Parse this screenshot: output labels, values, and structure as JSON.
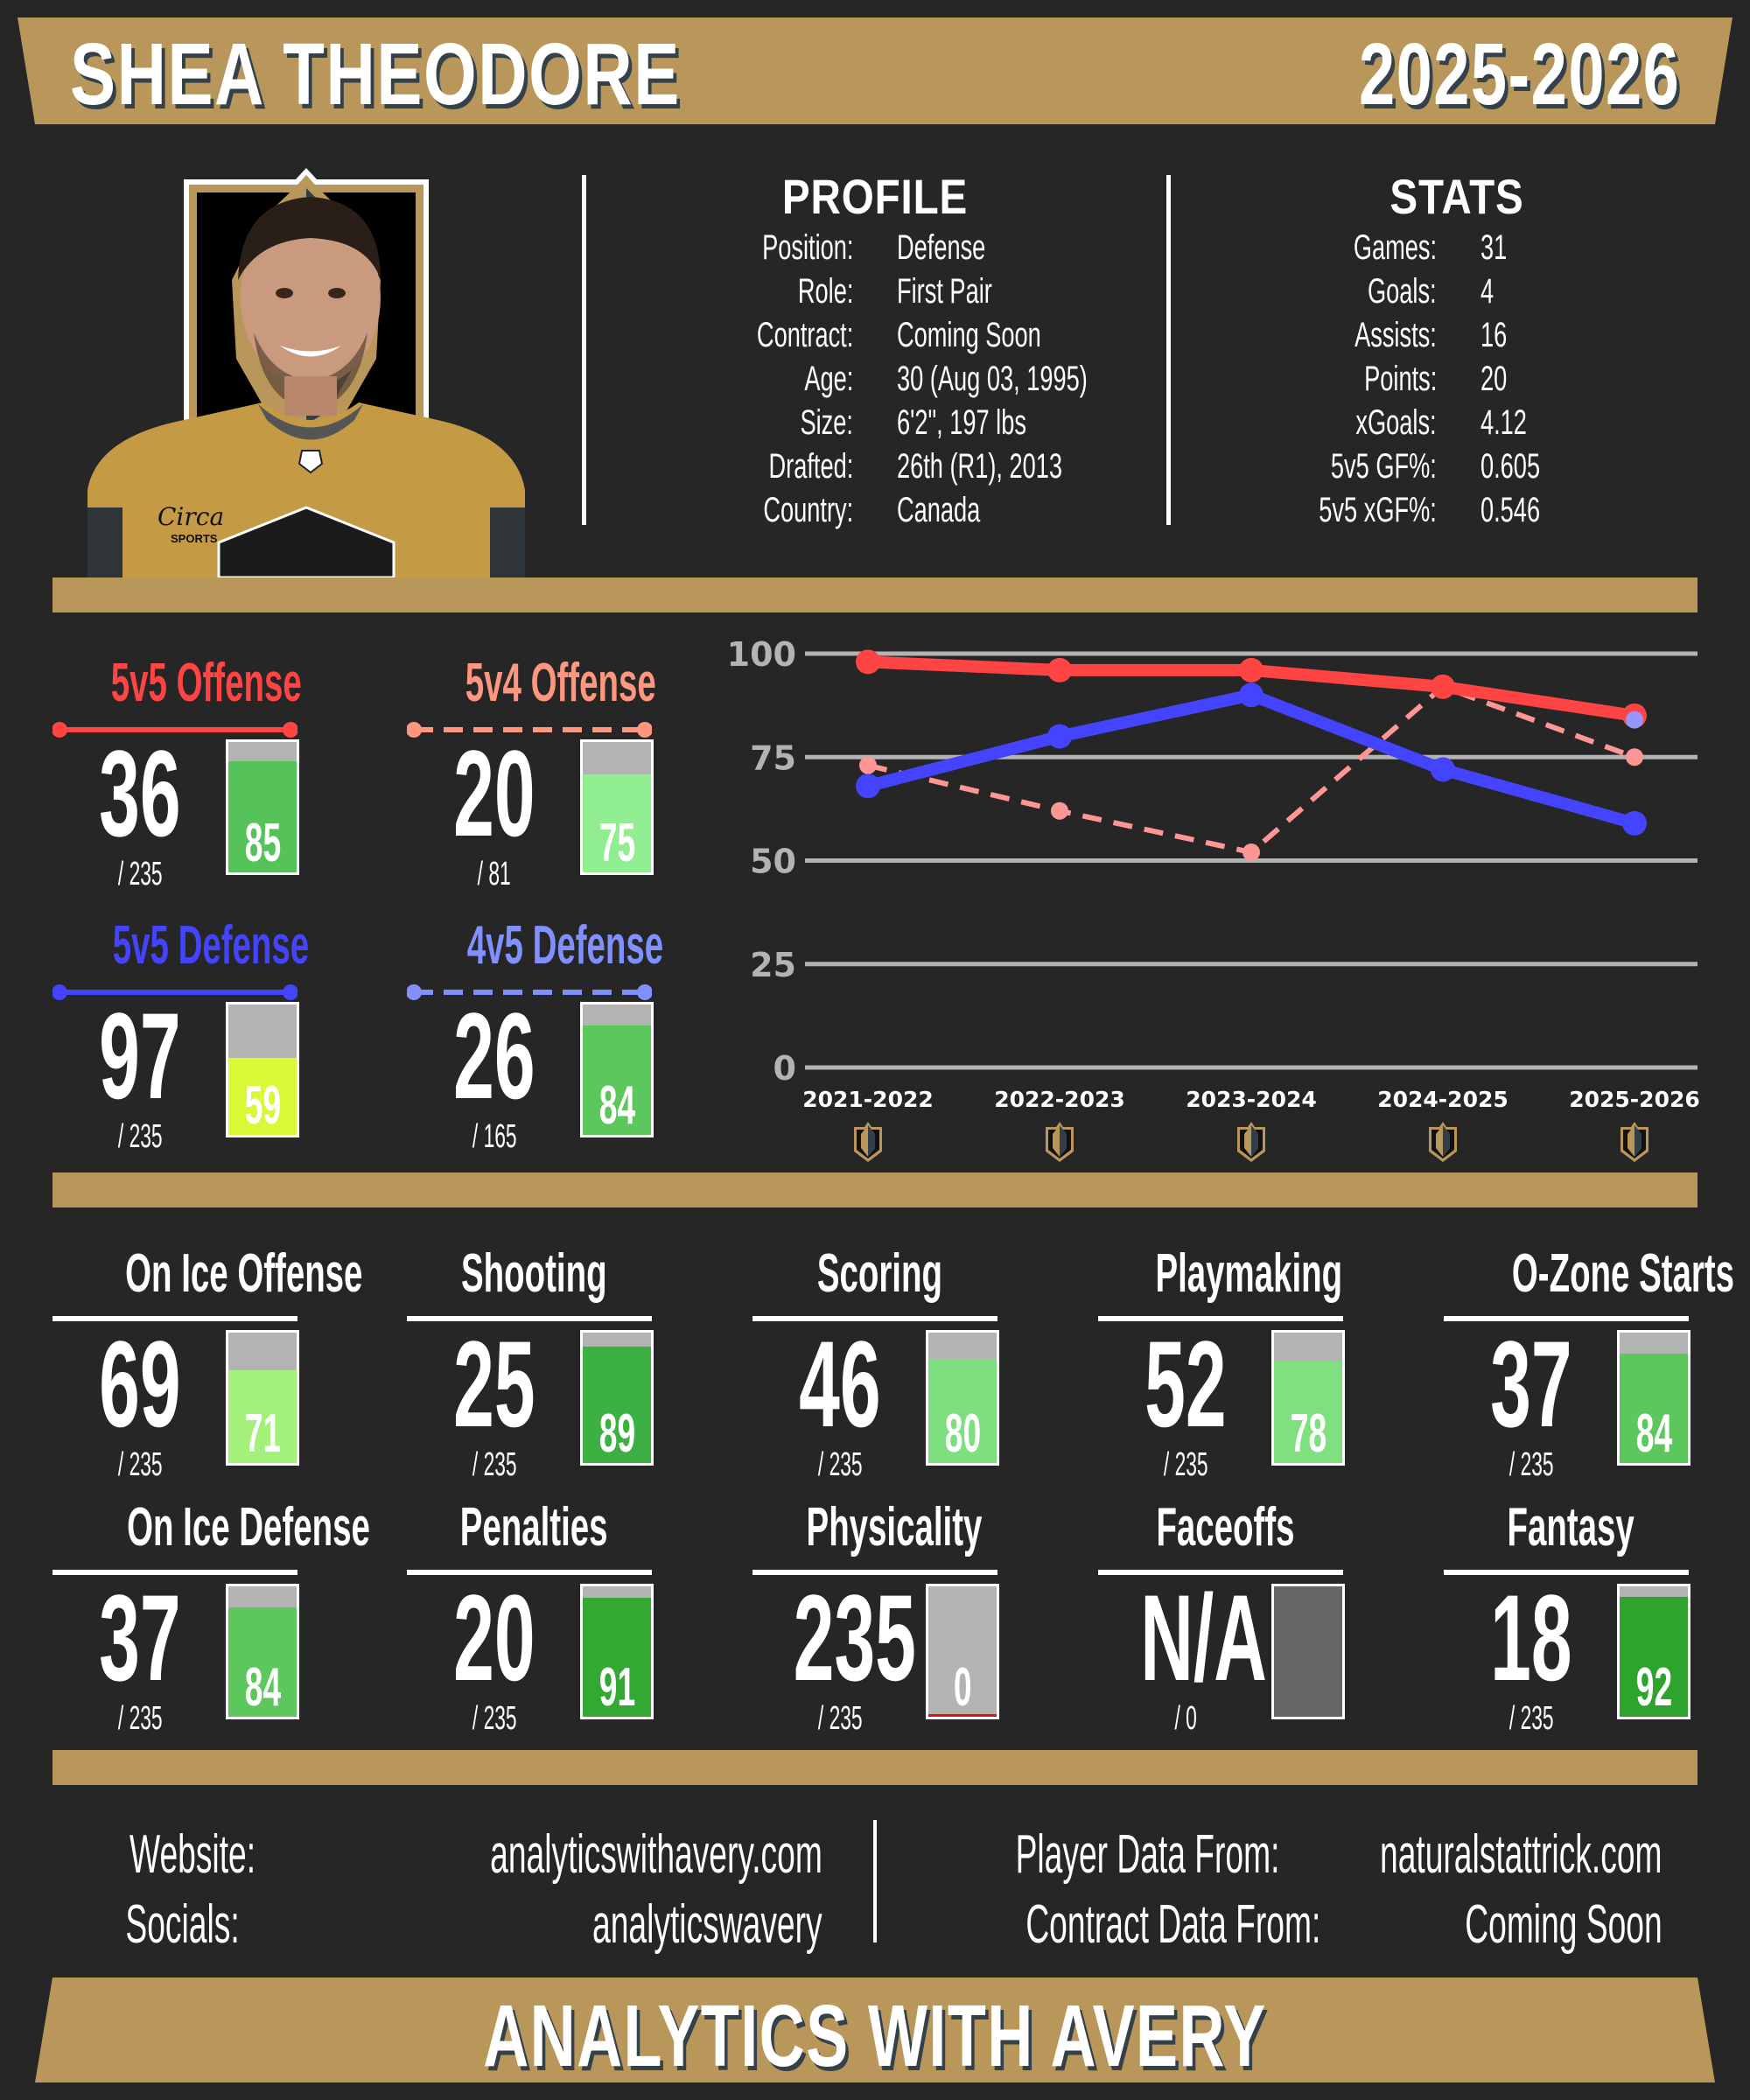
{
  "header": {
    "player_name": "SHEA THEODORE",
    "season": "2025-2026"
  },
  "colors": {
    "background": "#262626",
    "gold": "#b9975b",
    "text_shadow": "#34404a",
    "offense_5v5": "#ff4444",
    "offense_5v4": "#ff9696",
    "defense_5v5": "#4444ff",
    "defense_4v5": "#8c96ff",
    "bar_empty": "#b3b3b3",
    "grid": "#b3b3b3"
  },
  "player_photo": {
    "description": "player-headshot-gold-jersey",
    "jersey_patch": "Circa SPORTS"
  },
  "profile": {
    "title": "PROFILE",
    "rows": [
      {
        "label": "Position:",
        "value": "Defense"
      },
      {
        "label": "Role:",
        "value": "First Pair"
      },
      {
        "label": "Contract:",
        "value": "Coming Soon"
      },
      {
        "label": "Age:",
        "value": "30 (Aug 03, 1995)"
      },
      {
        "label": "Size:",
        "value": "6'2\", 197 lbs"
      },
      {
        "label": "Drafted:",
        "value": "26th (R1), 2013"
      },
      {
        "label": "Country:",
        "value": "Canada"
      }
    ]
  },
  "stats": {
    "title": "STATS",
    "rows": [
      {
        "label": "Games:",
        "value": "31"
      },
      {
        "label": "Goals:",
        "value": "4"
      },
      {
        "label": "Assists:",
        "value": "16"
      },
      {
        "label": "Points:",
        "value": "20"
      },
      {
        "label": "xGoals:",
        "value": "4.12"
      },
      {
        "label": "5v5 GF%:",
        "value": "0.605"
      },
      {
        "label": "5v5 xGF%:",
        "value": "0.546"
      }
    ]
  },
  "situational": [
    {
      "title": "5v5 Offense",
      "rank": "36",
      "total": "/ 235",
      "percentile": "85",
      "pct": 85,
      "title_color": "#ff4444",
      "bar_color": "#55c25a",
      "line": "solid"
    },
    {
      "title": "5v4 Offense",
      "rank": "20",
      "total": "/ 81",
      "percentile": "75",
      "pct": 75,
      "title_color": "#ff9680",
      "bar_color": "#90ee90",
      "line": "dashed"
    },
    {
      "title": "5v5 Defense",
      "rank": "97",
      "total": "/ 235",
      "percentile": "59",
      "pct": 59,
      "title_color": "#4444ff",
      "bar_color": "#d8f935",
      "line": "solid"
    },
    {
      "title": "4v5 Defense",
      "rank": "26",
      "total": "/ 165",
      "percentile": "84",
      "pct": 84,
      "title_color": "#8090ff",
      "bar_color": "#5cc75c",
      "line": "dashed"
    }
  ],
  "chart_data": {
    "type": "line",
    "title": "",
    "xlabel": "",
    "ylabel": "",
    "categories": [
      "2021-2022",
      "2022-2023",
      "2023-2024",
      "2024-2025",
      "2025-2026"
    ],
    "yticks": [
      "0",
      "25",
      "50",
      "75",
      "100"
    ],
    "ylim": [
      0,
      100
    ],
    "grid": true,
    "legend": "none (colors keyed to card titles)",
    "series": [
      {
        "name": "5v5 Offense",
        "color": "#ff4444",
        "style": "solid",
        "values": [
          98,
          96,
          96,
          92,
          85
        ]
      },
      {
        "name": "5v5 Defense",
        "color": "#4444ff",
        "style": "solid",
        "values": [
          68,
          80,
          90,
          72,
          59
        ]
      },
      {
        "name": "5v4 Offense",
        "color": "#ff9696",
        "style": "dashed",
        "values": [
          73,
          62,
          52,
          92,
          75
        ]
      },
      {
        "name": "4v5 Defense",
        "color": "#9696ff",
        "style": "dashed",
        "values": [
          null,
          null,
          null,
          null,
          84
        ]
      }
    ],
    "x_icons": [
      "vgk-logo-icon",
      "vgk-logo-icon",
      "vgk-logo-icon",
      "vgk-logo-icon",
      "vgk-logo-icon"
    ]
  },
  "metrics": [
    {
      "title": "On Ice Offense",
      "rank": "69",
      "total": "/ 235",
      "percentile": "71",
      "pct": 71,
      "bar_color": "#a3f07a"
    },
    {
      "title": "Shooting",
      "rank": "25",
      "total": "/ 235",
      "percentile": "89",
      "pct": 89,
      "bar_color": "#3cb043"
    },
    {
      "title": "Scoring",
      "rank": "46",
      "total": "/ 235",
      "percentile": "80",
      "pct": 80,
      "bar_color": "#7edf7e"
    },
    {
      "title": "Playmaking",
      "rank": "52",
      "total": "/ 235",
      "percentile": "78",
      "pct": 78,
      "bar_color": "#80e080"
    },
    {
      "title": "O-Zone Starts",
      "rank": "37",
      "total": "/ 235",
      "percentile": "84",
      "pct": 84,
      "bar_color": "#5cc75c"
    },
    {
      "title": "On Ice Defense",
      "rank": "37",
      "total": "/ 235",
      "percentile": "84",
      "pct": 84,
      "bar_color": "#5cc75c"
    },
    {
      "title": "Penalties",
      "rank": "20",
      "total": "/ 235",
      "percentile": "91",
      "pct": 91,
      "bar_color": "#33a833"
    },
    {
      "title": "Physicality",
      "rank": "235",
      "total": "/ 235",
      "percentile": "0",
      "pct": 0,
      "bar_color": "#e01010"
    },
    {
      "title": "Faceoffs",
      "rank": "N/A",
      "total": "/ 0",
      "percentile": "",
      "pct": 100,
      "bar_color": "#666666"
    },
    {
      "title": "Fantasy",
      "rank": "18",
      "total": "/ 235",
      "percentile": "92",
      "pct": 92,
      "bar_color": "#2ea42e"
    }
  ],
  "credits": {
    "website_label": "Website:",
    "website_value": "analyticswithavery.com",
    "socials_label": "Socials:",
    "socials_value": "analyticswavery",
    "player_data_label": "Player Data From:",
    "player_data_value": "naturalstattrick.com",
    "contract_data_label": "Contract Data From:",
    "contract_data_value": "Coming Soon"
  },
  "footer": {
    "brand": "ANALYTICS WITH AVERY"
  }
}
